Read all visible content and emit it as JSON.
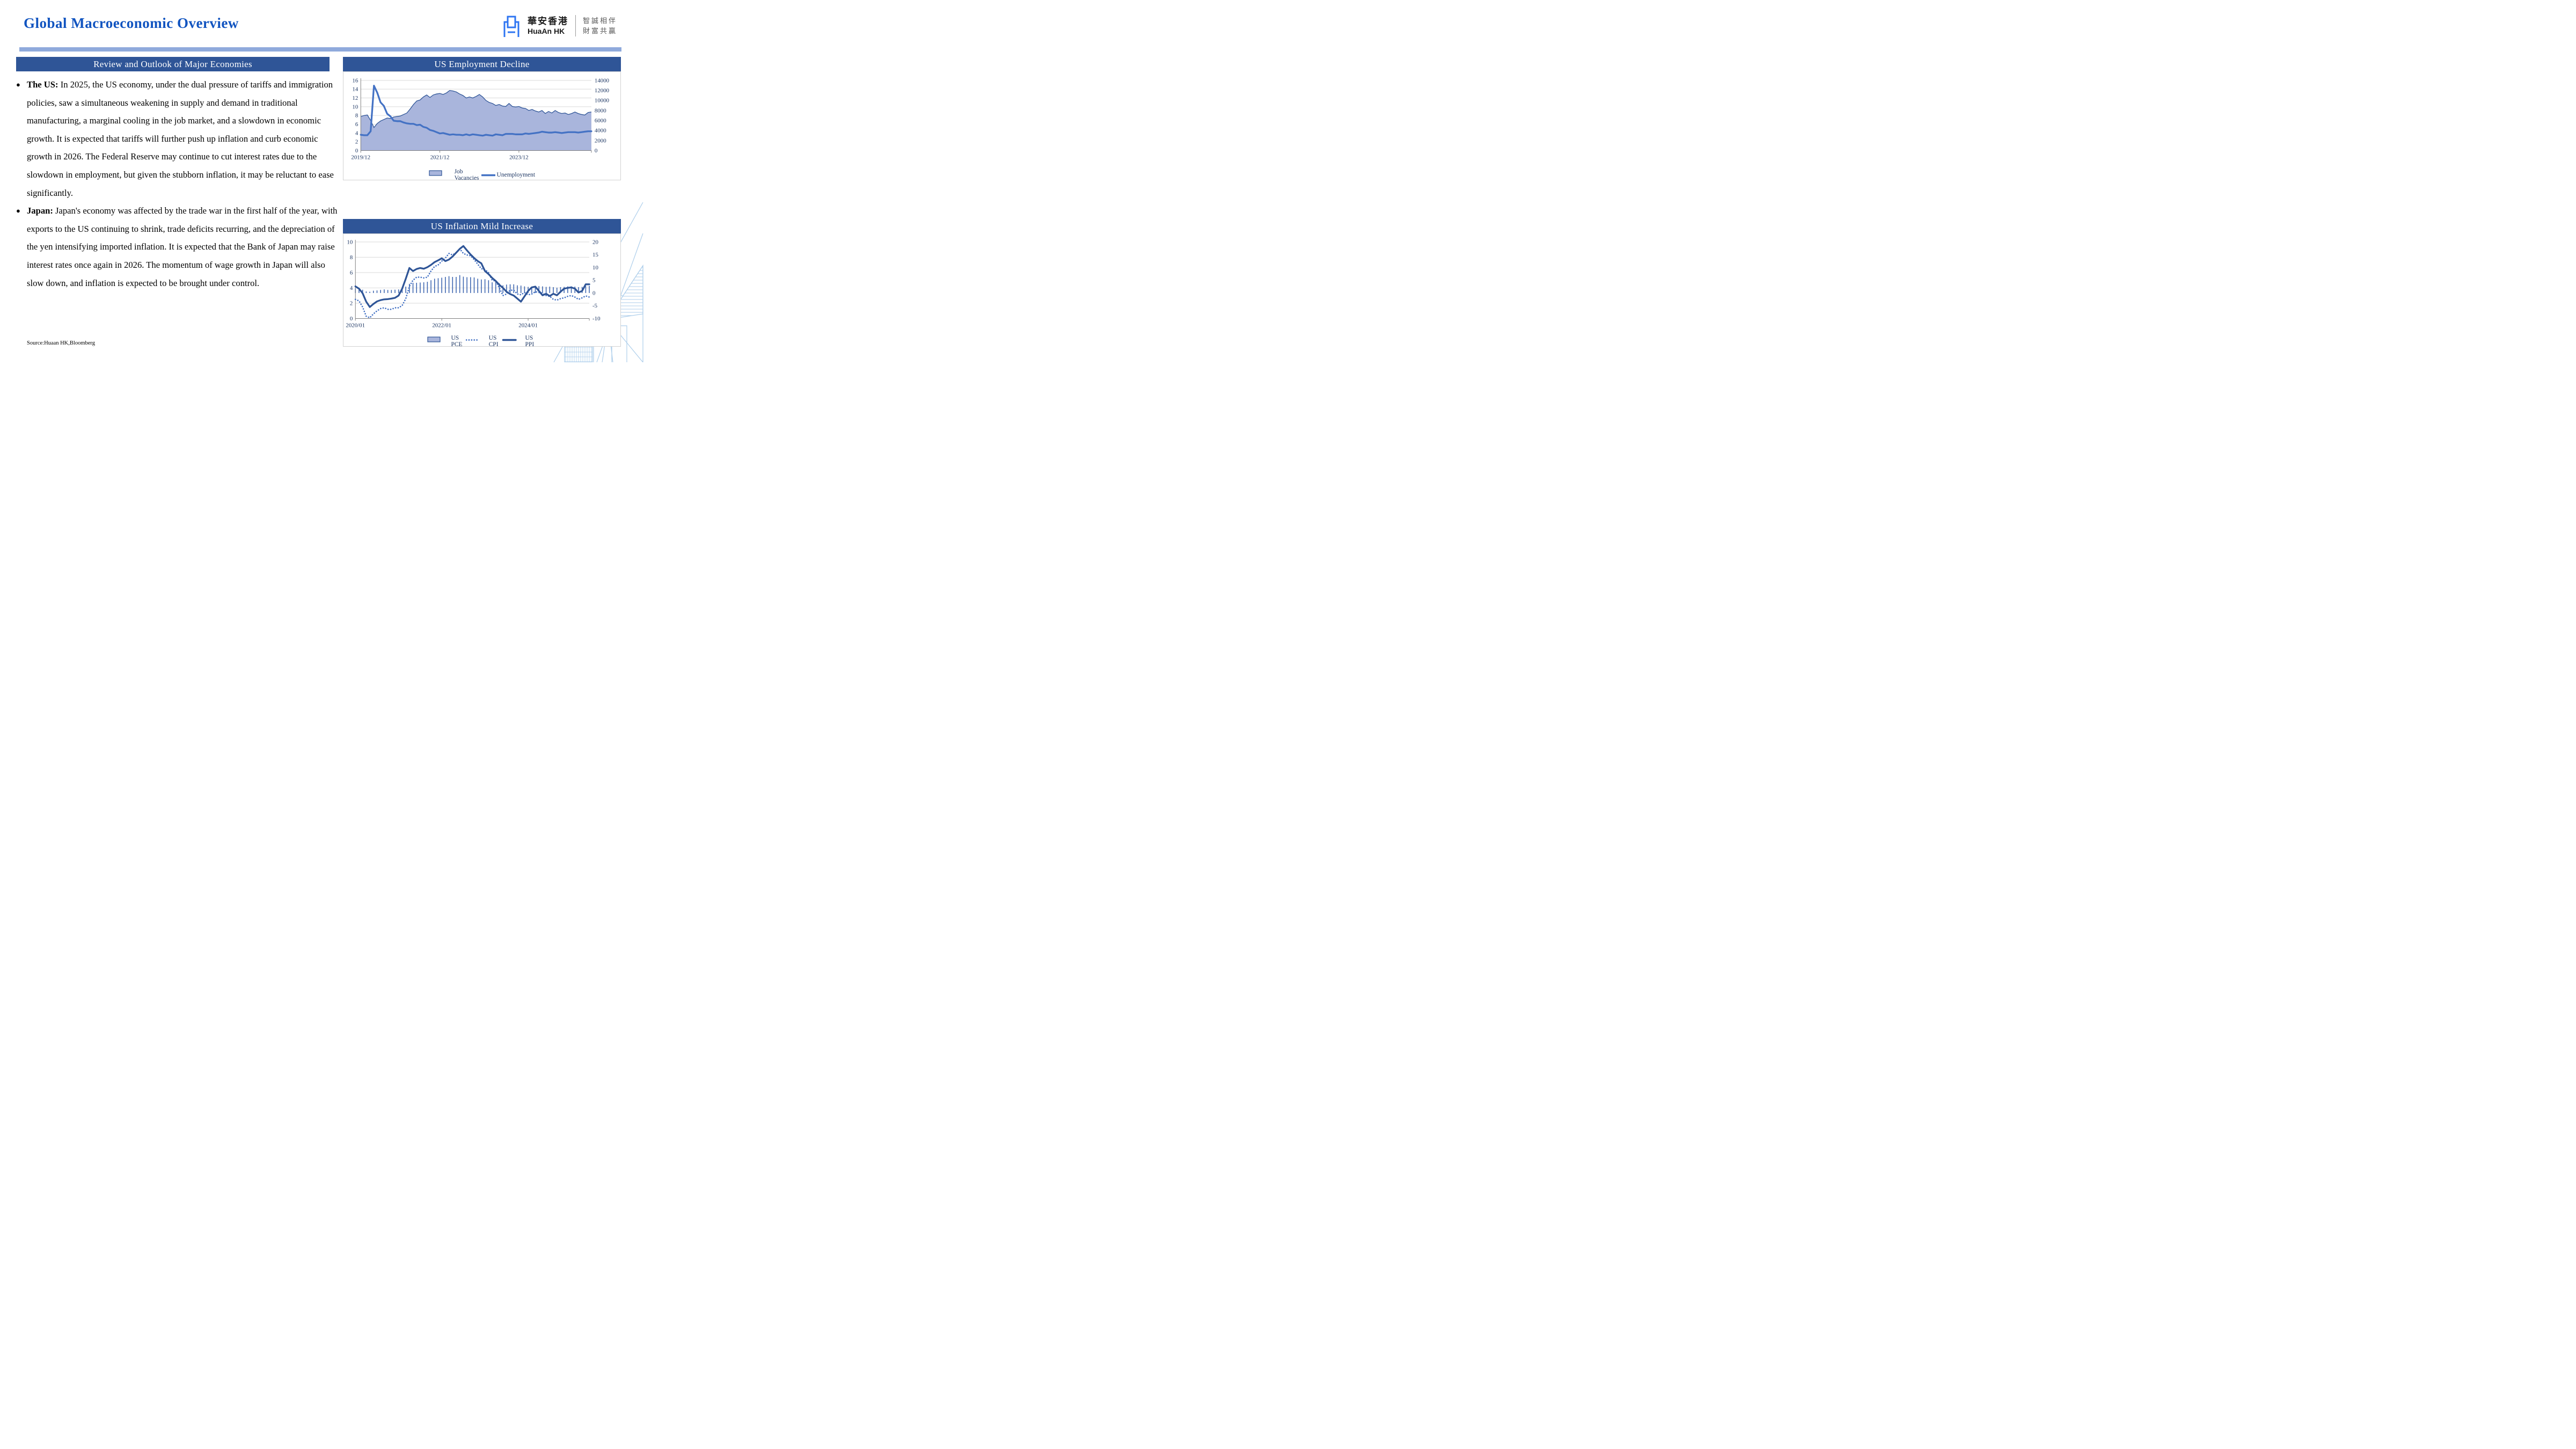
{
  "slide": {
    "title": "Global Macroeconomic Overview",
    "source": "Source:Huaan HK,Bloomberg"
  },
  "logo": {
    "brand_cn": "華安香港",
    "brand_en": "HuaAn HK",
    "slogan_line1": "智誠相伴",
    "slogan_line2": "財富共贏"
  },
  "left_panel": {
    "header": "Review and Outlook of Major Economies",
    "bullets": [
      {
        "label": "The US:",
        "text": "In 2025, the US economy, under the dual pressure of tariffs and immigration policies, saw a simultaneous weakening in supply and demand in traditional manufacturing, a marginal cooling in the job market, and a slowdown in economic growth. It is expected that tariffs will further push up inflation and curb economic growth in 2026. The Federal Reserve may continue to cut interest rates due to the slowdown in employment, but given the stubborn inflation, it may be reluctant to ease significantly."
      },
      {
        "label": "Japan:",
        "text": "Japan's economy was affected by the trade war in the first half of the year, with exports to the US continuing to shrink, trade deficits recurring, and the depreciation of the yen intensifying imported inflation. It is expected that the Bank of Japan may raise interest rates once again in 2026. The momentum of wage growth in Japan will also slow down, and inflation is expected to be brought under control."
      }
    ]
  },
  "colors": {
    "title_blue": "#1154C0",
    "header_bar": "#2F5597",
    "light_rule": "#8FAADC",
    "grid": "#D9D9D9",
    "axis": "#7F7F7F",
    "tick_text": "#1F3864",
    "logo_blue": "#2E75F2",
    "deco_blue": "#A9CCEA"
  },
  "chart_data": [
    {
      "type": "area+line",
      "title": "US Employment Decline",
      "x_tick_labels": [
        "2019/12",
        "2021/12",
        "2023/12"
      ],
      "x_tick_indices": [
        0,
        24,
        48
      ],
      "x_range_note": "monthly 2019/12 - 2025/10",
      "left_axis": {
        "min": 0,
        "max": 16,
        "ticks": [
          0,
          2,
          4,
          6,
          8,
          10,
          12,
          14,
          16
        ]
      },
      "right_axis": {
        "min": 0,
        "max": 14000,
        "ticks": [
          0,
          2000,
          4000,
          6000,
          8000,
          10000,
          12000,
          14000
        ]
      },
      "grid": true,
      "legend_position": "bottom",
      "series": [
        {
          "name": "Job Vacancies",
          "type": "area",
          "axis": "right",
          "fill": "#A9B5DC",
          "color": "#2F5597",
          "values": [
            6800,
            7000,
            7100,
            6000,
            4600,
            5400,
            5900,
            6200,
            6500,
            6400,
            6700,
            6800,
            6900,
            7200,
            7500,
            8300,
            9200,
            9900,
            10100,
            10700,
            11100,
            10600,
            11100,
            11300,
            11400,
            11200,
            11500,
            12000,
            11900,
            11700,
            11300,
            11000,
            10500,
            10700,
            10500,
            10800,
            11200,
            10700,
            10000,
            9600,
            9400,
            9000,
            9200,
            8900,
            8800,
            9400,
            8800,
            8700,
            8800,
            8500,
            8400,
            8000,
            8200,
            7900,
            7700,
            8000,
            7400,
            7800,
            7500,
            8000,
            7600,
            7400,
            7500,
            7200,
            7400,
            7700,
            7400,
            7200,
            7100,
            7600,
            7700
          ]
        },
        {
          "name": "Unemployment",
          "type": "line",
          "axis": "left",
          "color": "#4472C4",
          "values": [
            3.6,
            3.5,
            3.5,
            4.4,
            14.8,
            13.2,
            11.0,
            10.2,
            8.4,
            7.8,
            6.8,
            6.7,
            6.7,
            6.4,
            6.2,
            6.1,
            6.1,
            5.8,
            5.9,
            5.4,
            5.2,
            4.7,
            4.5,
            4.2,
            3.9,
            4.0,
            3.8,
            3.6,
            3.7,
            3.6,
            3.6,
            3.5,
            3.7,
            3.5,
            3.7,
            3.6,
            3.5,
            3.4,
            3.6,
            3.5,
            3.4,
            3.7,
            3.6,
            3.5,
            3.8,
            3.8,
            3.8,
            3.7,
            3.7,
            3.7,
            3.9,
            3.8,
            3.9,
            4.0,
            4.1,
            4.3,
            4.2,
            4.1,
            4.1,
            4.2,
            4.1,
            4.0,
            4.1,
            4.2,
            4.2,
            4.2,
            4.1,
            4.2,
            4.3,
            4.4,
            4.4
          ]
        }
      ]
    },
    {
      "type": "bar+line",
      "title": "US Inflation Mild Increase",
      "x_tick_labels": [
        "2020/01",
        "2022/01",
        "2024/01"
      ],
      "x_tick_indices": [
        0,
        24,
        48
      ],
      "x_range_note": "monthly 2020/01 - 2025/06",
      "left_axis": {
        "min": 0,
        "max": 10,
        "ticks": [
          0,
          2,
          4,
          6,
          8,
          10
        ]
      },
      "right_axis": {
        "min": -10,
        "max": 20,
        "ticks": [
          -10,
          -5,
          0,
          5,
          10,
          15,
          20
        ]
      },
      "grid": true,
      "legend_position": "bottom",
      "series": [
        {
          "name": "US PCE",
          "type": "bar",
          "axis": "right",
          "fill": "#A9B5DC",
          "color": "#3E66B0",
          "values": [
            1.8,
            1.8,
            1.3,
            0.6,
            0.5,
            0.9,
            1.0,
            1.2,
            1.4,
            1.2,
            1.2,
            1.3,
            1.4,
            1.6,
            2.5,
            3.6,
            4.0,
            4.0,
            4.1,
            4.2,
            4.4,
            5.0,
            5.6,
            5.8,
            6.0,
            6.3,
            6.6,
            6.3,
            6.3,
            7.0,
            6.4,
            6.2,
            6.2,
            6.1,
            5.6,
            5.3,
            5.4,
            5.0,
            4.2,
            4.3,
            3.8,
            3.0,
            3.3,
            3.4,
            3.4,
            3.0,
            2.9,
            2.6,
            2.4,
            2.5,
            2.7,
            2.7,
            2.6,
            2.4,
            2.5,
            2.3,
            2.1,
            2.3,
            2.4,
            2.6,
            2.6,
            2.5,
            2.3,
            2.4,
            2.7,
            2.8
          ]
        },
        {
          "name": "US CPI",
          "type": "dotted",
          "axis": "left",
          "color": "#4472C4",
          "values": [
            2.5,
            2.3,
            1.5,
            0.3,
            0.1,
            0.6,
            1.0,
            1.3,
            1.4,
            1.2,
            1.2,
            1.4,
            1.4,
            1.7,
            2.6,
            4.2,
            5.0,
            5.4,
            5.4,
            5.3,
            5.4,
            6.2,
            6.8,
            7.0,
            7.5,
            7.9,
            8.5,
            8.3,
            8.6,
            9.1,
            8.5,
            8.3,
            8.2,
            7.7,
            7.1,
            6.5,
            6.4,
            6.0,
            5.0,
            4.9,
            4.0,
            3.0,
            3.2,
            3.7,
            3.7,
            3.2,
            3.1,
            3.4,
            3.1,
            3.2,
            3.5,
            3.4,
            3.3,
            3.0,
            2.9,
            2.5,
            2.4,
            2.6,
            2.7,
            2.9,
            3.0,
            2.8,
            2.5,
            2.7,
            2.95,
            2.8
          ]
        },
        {
          "name": "US PPI",
          "type": "line",
          "axis": "right",
          "color": "#2F5597",
          "values": [
            2.6,
            1.7,
            -0.1,
            -3.4,
            -5.5,
            -4.3,
            -3.3,
            -2.8,
            -2.5,
            -2.4,
            -2.2,
            -1.9,
            -1.0,
            1.7,
            5.6,
            9.8,
            8.6,
            9.4,
            9.8,
            9.5,
            10.1,
            11.0,
            12.1,
            12.8,
            13.6,
            12.5,
            13.1,
            14.3,
            15.8,
            17.3,
            18.4,
            16.7,
            15.1,
            13.7,
            12.5,
            11.6,
            8.6,
            7.4,
            5.9,
            4.7,
            3.2,
            2.0,
            0.5,
            -0.4,
            -1.0,
            -2.2,
            -3.4,
            -1.3,
            0.8,
            2.2,
            2.5,
            0.8,
            -0.9,
            -0.3,
            -1.2,
            -0.3,
            -0.9,
            0.5,
            1.7,
            2.0,
            2.2,
            1.7,
            0.2,
            0.8,
            3.4,
            3.4
          ]
        }
      ]
    }
  ]
}
